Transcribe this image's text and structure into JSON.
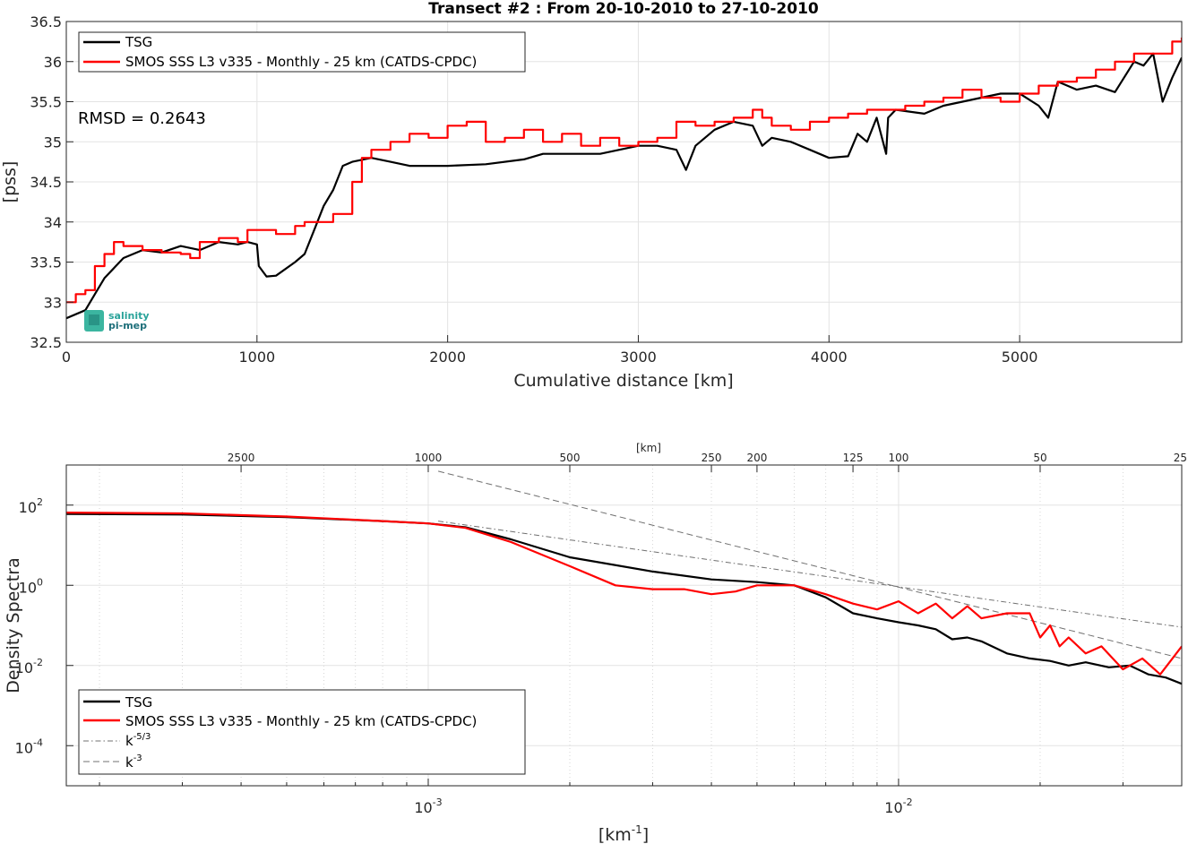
{
  "chart_data": [
    {
      "type": "line",
      "title": "Transect #2 : From 20-10-2010 to 27-10-2010",
      "xlabel": "Cumulative distance [km]",
      "ylabel": "[pss]",
      "xlim": [
        0,
        5850
      ],
      "ylim": [
        32.5,
        36.5
      ],
      "xticks": [
        "0",
        "1000",
        "2000",
        "3000",
        "4000",
        "5000"
      ],
      "yticks": [
        "32.5",
        "33",
        "33.5",
        "34",
        "34.5",
        "35",
        "35.5",
        "36",
        "36.5"
      ],
      "grid": true,
      "legend_position": "top-left",
      "annotation": "RMSD = 0.2643",
      "logo": {
        "line1": "salinity",
        "line2": "pi-mep"
      },
      "series": [
        {
          "name": "TSG",
          "color": "#000000",
          "x": [
            0,
            100,
            150,
            200,
            300,
            400,
            500,
            600,
            700,
            800,
            900,
            950,
            1000,
            1010,
            1050,
            1100,
            1200,
            1250,
            1300,
            1350,
            1400,
            1450,
            1500,
            1600,
            1700,
            1800,
            2000,
            2200,
            2400,
            2500,
            2600,
            2800,
            3000,
            3100,
            3200,
            3250,
            3300,
            3400,
            3500,
            3600,
            3650,
            3700,
            3800,
            3900,
            4000,
            4100,
            4150,
            4200,
            4250,
            4300,
            4310,
            4350,
            4500,
            4600,
            4700,
            4800,
            4900,
            5000,
            5100,
            5150,
            5200,
            5300,
            5400,
            5500,
            5600,
            5650,
            5700,
            5750,
            5800,
            5850
          ],
          "y": [
            32.8,
            32.9,
            33.1,
            33.3,
            33.55,
            33.65,
            33.62,
            33.7,
            33.65,
            33.75,
            33.72,
            33.75,
            33.72,
            33.45,
            33.32,
            33.33,
            33.5,
            33.6,
            33.9,
            34.2,
            34.4,
            34.7,
            34.75,
            34.8,
            34.75,
            34.7,
            34.7,
            34.72,
            34.78,
            34.85,
            34.85,
            34.85,
            34.95,
            34.95,
            34.9,
            34.65,
            34.95,
            35.15,
            35.25,
            35.2,
            34.95,
            35.05,
            35.0,
            34.9,
            34.8,
            34.82,
            35.1,
            35.0,
            35.3,
            34.85,
            35.3,
            35.4,
            35.35,
            35.45,
            35.5,
            35.55,
            35.6,
            35.6,
            35.45,
            35.3,
            35.75,
            35.65,
            35.7,
            35.62,
            36.0,
            35.95,
            36.1,
            35.5,
            35.8,
            36.05
          ]
        },
        {
          "name": "SMOS SSS L3 v335 - Monthly - 25 km (CATDS-CPDC)",
          "color": "#ff0000",
          "x": [
            0,
            50,
            100,
            150,
            200,
            250,
            300,
            400,
            500,
            600,
            650,
            700,
            800,
            900,
            950,
            1000,
            1100,
            1200,
            1250,
            1300,
            1400,
            1500,
            1550,
            1600,
            1700,
            1800,
            1900,
            2000,
            2100,
            2200,
            2300,
            2400,
            2500,
            2600,
            2700,
            2800,
            2900,
            3000,
            3100,
            3200,
            3300,
            3400,
            3500,
            3600,
            3650,
            3700,
            3800,
            3900,
            4000,
            4100,
            4200,
            4300,
            4400,
            4500,
            4600,
            4700,
            4800,
            4900,
            5000,
            5100,
            5200,
            5300,
            5400,
            5500,
            5600,
            5700,
            5800,
            5850
          ],
          "y": [
            33.0,
            33.1,
            33.15,
            33.45,
            33.6,
            33.75,
            33.7,
            33.65,
            33.62,
            33.6,
            33.55,
            33.75,
            33.8,
            33.75,
            33.9,
            33.9,
            33.85,
            33.95,
            34.0,
            34.0,
            34.1,
            34.5,
            34.8,
            34.9,
            35.0,
            35.1,
            35.05,
            35.2,
            35.25,
            35.0,
            35.05,
            35.15,
            35.0,
            35.1,
            34.95,
            35.05,
            34.95,
            35.0,
            35.05,
            35.25,
            35.2,
            35.25,
            35.3,
            35.4,
            35.3,
            35.2,
            35.15,
            35.25,
            35.3,
            35.35,
            35.4,
            35.4,
            35.45,
            35.5,
            35.55,
            35.65,
            35.55,
            35.5,
            35.6,
            35.7,
            35.75,
            35.8,
            35.9,
            36.0,
            36.1,
            36.1,
            36.25,
            36.3
          ]
        }
      ]
    },
    {
      "type": "line",
      "xlabel_base": "[km",
      "xlabel_exp": "-1",
      "xlabel_end": "]",
      "ylabel": "Density Spectra",
      "top_axis_label": "[km]",
      "x_scale": "log",
      "y_scale": "log",
      "xlim": [
        0.00017,
        0.04
      ],
      "ylim": [
        1e-05,
        1000
      ],
      "xticks": [
        {
          "value": 0.001,
          "base": "10",
          "exp": "-3"
        },
        {
          "value": 0.01,
          "base": "10",
          "exp": "-2"
        }
      ],
      "yticks": [
        {
          "value": 100,
          "base": "10",
          "exp": "2"
        },
        {
          "value": 1,
          "base": "10",
          "exp": "0"
        },
        {
          "value": 0.01,
          "base": "10",
          "exp": "-2"
        },
        {
          "value": 0.0001,
          "base": "10",
          "exp": "-4"
        }
      ],
      "top_ticks": [
        "2500",
        "1000",
        "500",
        "250",
        "200",
        "125",
        "100",
        "50",
        "25"
      ],
      "grid": true,
      "legend_position": "bottom-left",
      "series": [
        {
          "name": "TSG",
          "color": "#000000",
          "x": [
            0.00017,
            0.0003,
            0.0005,
            0.0008,
            0.001,
            0.0012,
            0.0015,
            0.002,
            0.003,
            0.004,
            0.005,
            0.006,
            0.007,
            0.008,
            0.009,
            0.01,
            0.011,
            0.012,
            0.013,
            0.014,
            0.015,
            0.017,
            0.019,
            0.021,
            0.023,
            0.025,
            0.028,
            0.031,
            0.034,
            0.037,
            0.04
          ],
          "y": [
            60,
            58,
            50,
            40,
            35,
            28,
            14,
            5,
            2.2,
            1.4,
            1.2,
            1.0,
            0.5,
            0.2,
            0.15,
            0.12,
            0.1,
            0.08,
            0.045,
            0.05,
            0.04,
            0.02,
            0.015,
            0.013,
            0.01,
            0.012,
            0.009,
            0.01,
            0.006,
            0.005,
            0.0035
          ]
        },
        {
          "name": "SMOS SSS L3 v335 - Monthly - 25 km (CATDS-CPDC)",
          "color": "#ff0000",
          "x": [
            0.00017,
            0.0003,
            0.0005,
            0.0008,
            0.001,
            0.0012,
            0.0015,
            0.002,
            0.0025,
            0.003,
            0.0035,
            0.004,
            0.0045,
            0.005,
            0.006,
            0.007,
            0.008,
            0.009,
            0.01,
            0.011,
            0.012,
            0.013,
            0.014,
            0.015,
            0.017,
            0.019,
            0.02,
            0.021,
            0.022,
            0.023,
            0.025,
            0.027,
            0.03,
            0.033,
            0.036,
            0.04
          ],
          "y": [
            65,
            62,
            52,
            40,
            35,
            27,
            12,
            3,
            1.0,
            0.8,
            0.8,
            0.6,
            0.7,
            1.0,
            1.0,
            0.6,
            0.35,
            0.25,
            0.4,
            0.2,
            0.35,
            0.15,
            0.3,
            0.15,
            0.2,
            0.2,
            0.05,
            0.1,
            0.03,
            0.05,
            0.02,
            0.03,
            0.008,
            0.015,
            0.006,
            0.03
          ]
        },
        {
          "name": "k",
          "exp_label": "-5/3",
          "color": "#707070",
          "dash": "dashdot",
          "x": [
            0.00105,
            0.04
          ],
          "y": [
            40,
            0.09
          ]
        },
        {
          "name": "k",
          "exp_label": "-3",
          "color": "#707070",
          "dash": "dash",
          "x": [
            0.00105,
            0.04
          ],
          "y": [
            700,
            0.015
          ]
        }
      ]
    }
  ]
}
